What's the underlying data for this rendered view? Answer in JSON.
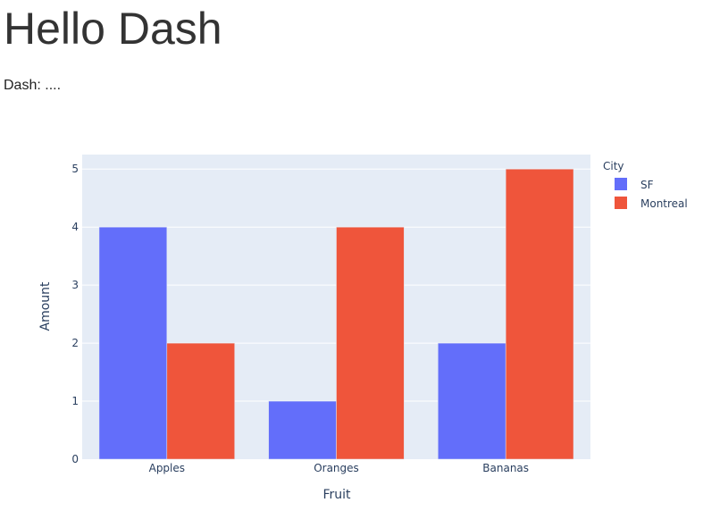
{
  "header": {
    "title": "Hello Dash",
    "subtitle": "Dash: ...."
  },
  "colors": {
    "plot_bg": "#e5ecf6",
    "grid": "#ffffff",
    "text": "#2a3f5f",
    "SF": "#636efa",
    "Montreal": "#ef553b"
  },
  "chart_data": {
    "type": "bar",
    "barmode": "group",
    "categories": [
      "Apples",
      "Oranges",
      "Bananas"
    ],
    "series": [
      {
        "name": "SF",
        "values": [
          4,
          1,
          2
        ]
      },
      {
        "name": "Montreal",
        "values": [
          2,
          4,
          5
        ]
      }
    ],
    "xlabel": "Fruit",
    "ylabel": "Amount",
    "ylim": [
      0,
      5.25
    ],
    "yticks": [
      0,
      1,
      2,
      3,
      4,
      5
    ],
    "legend_title": "City",
    "legend_position": "top-right",
    "grid": true
  }
}
